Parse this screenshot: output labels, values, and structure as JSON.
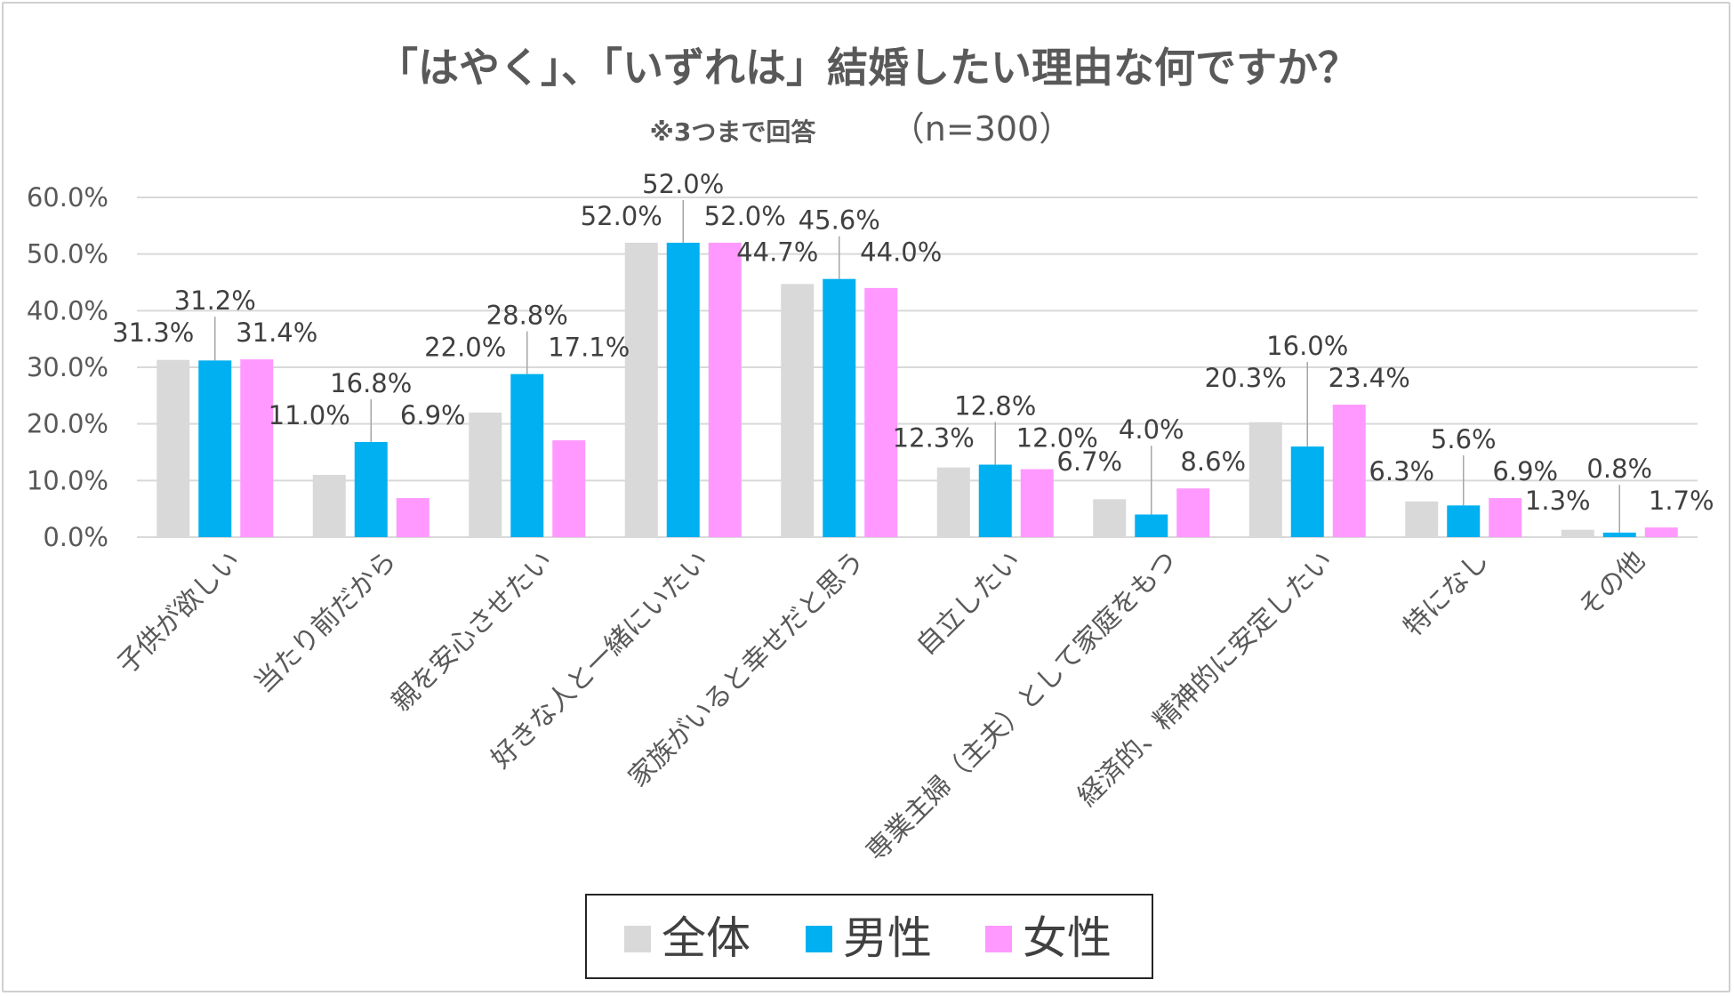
{
  "chart_data": {
    "type": "bar",
    "title": "「はやく」、「いずれは」結婚したい理由な何ですか？",
    "subtitle_note": "※3つまで回答",
    "subtitle_n": "（n=300）",
    "xlabel": "",
    "ylabel": "",
    "ylim": [
      0,
      60
    ],
    "yticks": [
      "0.0%",
      "10.0%",
      "20.0%",
      "30.0%",
      "40.0%",
      "50.0%",
      "60.0%"
    ],
    "grid": true,
    "legend_position": "bottom-center",
    "categories": [
      "子供が欲しい",
      "当たり前だから",
      "親を安心させたい",
      "好きな人と一緒にいたい",
      "家族がいると幸せだと思う",
      "自立したい",
      "専業主婦（主夫）として家庭をもつ",
      "経済的、精神的に安定したい",
      "特になし",
      "その他"
    ],
    "series": [
      {
        "name": "全体",
        "color": "#d9d9d9",
        "values": [
          31.3,
          11.0,
          22.0,
          52.0,
          44.7,
          12.3,
          6.7,
          20.3,
          6.3,
          1.3
        ],
        "labels": [
          "31.3%",
          "11.0%",
          "22.0%",
          "52.0%",
          "44.7%",
          "12.3%",
          "6.7%",
          "20.3%",
          "6.3%",
          "1.3%"
        ]
      },
      {
        "name": "男性",
        "color": "#00b0f0",
        "values": [
          31.2,
          16.8,
          28.8,
          52.0,
          45.6,
          12.8,
          4.0,
          16.0,
          5.6,
          0.8
        ],
        "labels": [
          "31.2%",
          "16.8%",
          "28.8%",
          "52.0%",
          "45.6%",
          "12.8%",
          "4.0%",
          "16.0%",
          "5.6%",
          "0.8%"
        ]
      },
      {
        "name": "女性",
        "color": "#ff99ff",
        "values": [
          31.4,
          6.9,
          17.1,
          52.0,
          44.0,
          12.0,
          8.6,
          23.4,
          6.9,
          1.7
        ],
        "labels": [
          "31.4%",
          "6.9%",
          "17.1%",
          "52.0%",
          "44.0%",
          "12.0%",
          "8.6%",
          "23.4%",
          "6.9%",
          "1.7%"
        ]
      }
    ]
  },
  "colors": {
    "grid": "#d9d9d9",
    "text": "#595959",
    "leader": "#a6a6a6"
  }
}
